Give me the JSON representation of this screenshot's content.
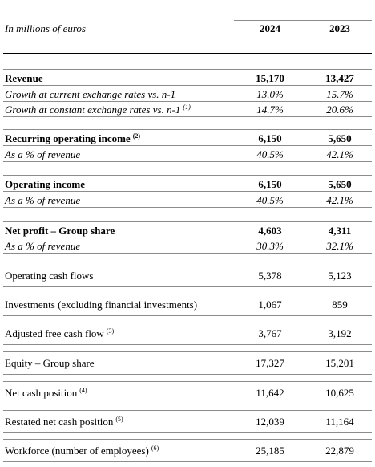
{
  "header": {
    "unit_label": "In millions of euros",
    "col_2024": "2024",
    "col_2023": "2023"
  },
  "rows": [
    {
      "label": "Revenue",
      "note": "",
      "v2024": "15,170",
      "v2023": "13,427"
    },
    {
      "label": "Growth at current exchange rates vs. n-1",
      "note": "",
      "v2024": "13.0%",
      "v2023": "15.7%"
    },
    {
      "label": "Growth at constant exchange rates vs. n-1",
      "note": "(1)",
      "v2024": "14.7%",
      "v2023": "20.6%"
    },
    {
      "label": "Recurring operating income",
      "note": "(2)",
      "v2024": "6,150",
      "v2023": "5,650"
    },
    {
      "label": "As a % of revenue",
      "note": "",
      "v2024": "40.5%",
      "v2023": "42.1%"
    },
    {
      "label": "Operating income",
      "note": "",
      "v2024": "6,150",
      "v2023": "5,650"
    },
    {
      "label": "As a % of revenue",
      "note": "",
      "v2024": "40.5%",
      "v2023": "42.1%"
    },
    {
      "label": "Net profit – Group share",
      "note": "",
      "v2024": "4,603",
      "v2023": "4,311"
    },
    {
      "label": "As a % of revenue",
      "note": "",
      "v2024": "30.3%",
      "v2023": "32.1%"
    },
    {
      "label": "Operating cash flows",
      "note": "",
      "v2024": "5,378",
      "v2023": "5,123"
    },
    {
      "label": "Investments (excluding financial investments)",
      "note": "",
      "v2024": "1,067",
      "v2023": "859"
    },
    {
      "label": "Adjusted free cash flow",
      "note": "(3)",
      "v2024": "3,767",
      "v2023": "3,192"
    },
    {
      "label": "Equity – Group share",
      "note": "",
      "v2024": "17,327",
      "v2023": "15,201"
    },
    {
      "label": "Net cash position",
      "note": "(4)",
      "v2024": "11,642",
      "v2023": "10,625"
    },
    {
      "label": "Restated net cash position",
      "note": "(5)",
      "v2024": "12,039",
      "v2023": "11,164"
    },
    {
      "label": "Workforce (number of employees)",
      "note": "(6)",
      "v2024": "25,185",
      "v2023": "22,879"
    }
  ]
}
